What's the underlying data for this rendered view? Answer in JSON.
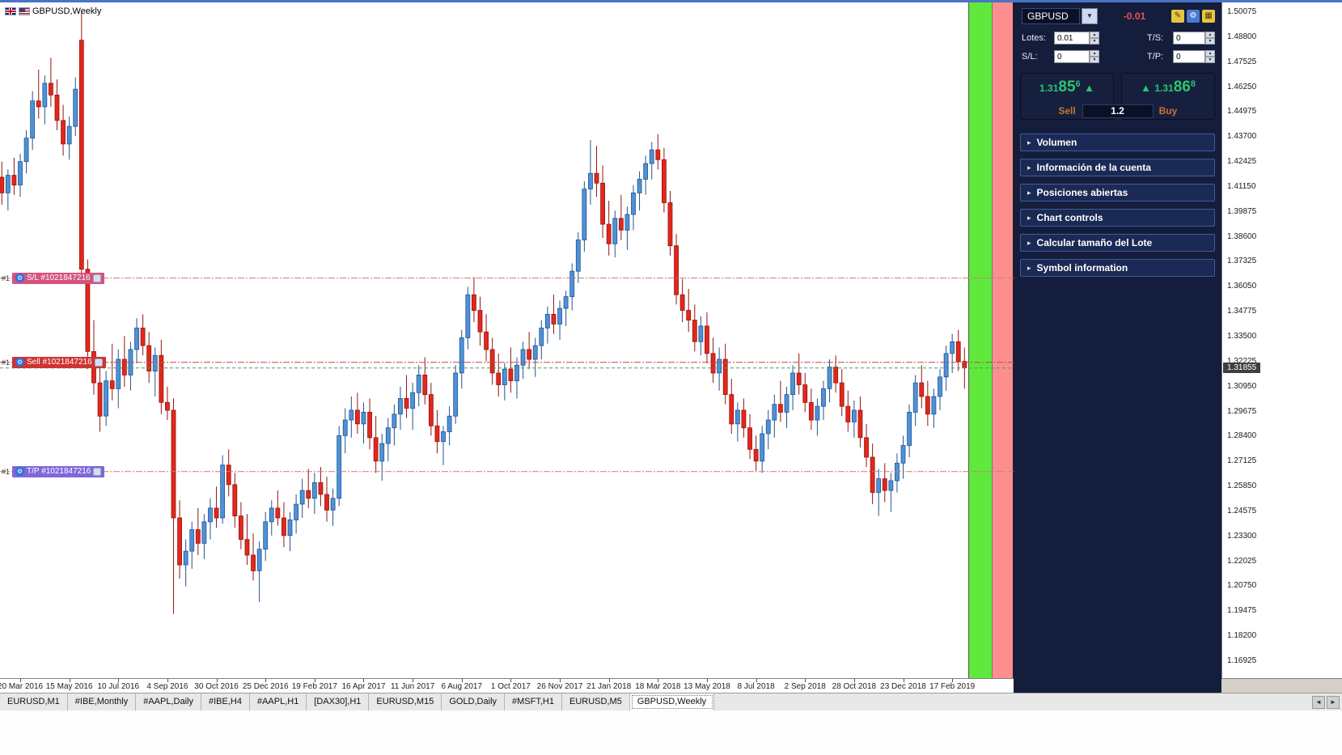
{
  "icons": {
    "dropdown": "▼",
    "up_arrow": "▲",
    "section_arrow": "▸",
    "gear": "⚙",
    "spin_up": "▲",
    "spin_down": "▼",
    "scroll_left": "◄",
    "scroll_right": "►",
    "panel_icon_1": "✎",
    "panel_icon_2": "⚙",
    "panel_icon_3": "▦"
  },
  "chart_data": {
    "type": "candlestick",
    "title": "GBPUSD,Weekly",
    "symbol": "GBPUSD",
    "timeframe": "Weekly",
    "up_color": "#4e92d8",
    "up_border": "#23538f",
    "down_color": "#e3271c",
    "down_border": "#941510",
    "bands": {
      "green_color": "#60e93c",
      "red_color": "#fc8e8e"
    },
    "price_axis": {
      "max": 1.50075,
      "min": 1.16925,
      "tick_step": 0.01275,
      "ticks": [
        "1.50075",
        "1.48800",
        "1.47525",
        "1.46250",
        "1.44975",
        "1.43700",
        "1.42425",
        "1.41150",
        "1.39875",
        "1.38600",
        "1.37325",
        "1.36050",
        "1.34775",
        "1.33500",
        "1.32225",
        "1.30950",
        "1.29675",
        "1.28400",
        "1.27125",
        "1.25850",
        "1.24575",
        "1.23300",
        "1.22025",
        "1.20750",
        "1.19475",
        "1.18200",
        "1.16925"
      ]
    },
    "x_labels": [
      "20 Mar 2016",
      "15 May 2016",
      "10 Jul 2016",
      "4 Sep 2016",
      "30 Oct 2016",
      "25 Dec 2016",
      "19 Feb 2017",
      "16 Apr 2017",
      "11 Jun 2017",
      "6 Aug 2017",
      "1 Oct 2017",
      "26 Nov 2017",
      "21 Jan 2018",
      "18 Mar 2018",
      "13 May 2018",
      "8 Jul 2018",
      "2 Sep 2018",
      "28 Oct 2018",
      "23 Dec 2018",
      "17 Feb 2019"
    ],
    "x_label_start_index": 3,
    "x_label_interval": 8,
    "current_price": {
      "value": 1.31855,
      "display": "1.31855",
      "line_color": "#3d9e63",
      "badge_bg": "#3f3f3f"
    },
    "lines": [
      {
        "id": "sl",
        "price": 1.3645,
        "prefix": "#1",
        "label": "S/L #1021847216",
        "line_color": "#d07878",
        "chip_color": "#d65380",
        "style": "dashdot"
      },
      {
        "id": "sell",
        "price": 1.3215,
        "prefix": "#1",
        "label": "Sell #1021847216",
        "line_color": "#c24848",
        "chip_color": "#cf3333",
        "style": "dashdot"
      },
      {
        "id": "tp",
        "price": 1.2657,
        "prefix": "#1",
        "label": "T/P #1021847216",
        "line_color": "#d07878",
        "chip_color": "#7f68d8",
        "style": "dashdot"
      }
    ],
    "candles": [
      [
        1.416,
        1.424,
        1.402,
        1.408
      ],
      [
        1.408,
        1.42,
        1.399,
        1.417
      ],
      [
        1.417,
        1.426,
        1.407,
        1.412
      ],
      [
        1.412,
        1.428,
        1.406,
        1.424
      ],
      [
        1.424,
        1.44,
        1.418,
        1.436
      ],
      [
        1.436,
        1.46,
        1.43,
        1.455
      ],
      [
        1.455,
        1.471,
        1.446,
        1.452
      ],
      [
        1.452,
        1.468,
        1.443,
        1.464
      ],
      [
        1.464,
        1.477,
        1.452,
        1.458
      ],
      [
        1.458,
        1.466,
        1.44,
        1.445
      ],
      [
        1.445,
        1.453,
        1.427,
        1.433
      ],
      [
        1.433,
        1.447,
        1.425,
        1.442
      ],
      [
        1.442,
        1.467,
        1.437,
        1.461
      ],
      [
        1.486,
        1.501,
        1.362,
        1.369
      ],
      [
        1.369,
        1.374,
        1.318,
        1.327
      ],
      [
        1.327,
        1.343,
        1.305,
        1.311
      ],
      [
        1.311,
        1.32,
        1.286,
        1.294
      ],
      [
        1.294,
        1.317,
        1.289,
        1.312
      ],
      [
        1.312,
        1.331,
        1.302,
        1.308
      ],
      [
        1.308,
        1.328,
        1.298,
        1.323
      ],
      [
        1.323,
        1.335,
        1.309,
        1.315
      ],
      [
        1.315,
        1.332,
        1.307,
        1.328
      ],
      [
        1.328,
        1.344,
        1.321,
        1.339
      ],
      [
        1.339,
        1.346,
        1.325,
        1.33
      ],
      [
        1.33,
        1.337,
        1.311,
        1.317
      ],
      [
        1.317,
        1.329,
        1.304,
        1.325
      ],
      [
        1.325,
        1.333,
        1.295,
        1.301
      ],
      [
        1.301,
        1.309,
        1.292,
        1.297
      ],
      [
        1.297,
        1.303,
        1.193,
        1.242
      ],
      [
        1.242,
        1.251,
        1.211,
        1.218
      ],
      [
        1.218,
        1.231,
        1.207,
        1.225
      ],
      [
        1.225,
        1.24,
        1.216,
        1.236
      ],
      [
        1.236,
        1.247,
        1.223,
        1.229
      ],
      [
        1.229,
        1.244,
        1.221,
        1.24
      ],
      [
        1.24,
        1.252,
        1.231,
        1.247
      ],
      [
        1.247,
        1.258,
        1.237,
        1.242
      ],
      [
        1.242,
        1.274,
        1.239,
        1.269
      ],
      [
        1.269,
        1.277,
        1.253,
        1.259
      ],
      [
        1.259,
        1.265,
        1.237,
        1.243
      ],
      [
        1.243,
        1.25,
        1.226,
        1.231
      ],
      [
        1.231,
        1.244,
        1.218,
        1.223
      ],
      [
        1.223,
        1.234,
        1.21,
        1.215
      ],
      [
        1.215,
        1.23,
        1.199,
        1.226
      ],
      [
        1.226,
        1.245,
        1.22,
        1.24
      ],
      [
        1.24,
        1.251,
        1.233,
        1.247
      ],
      [
        1.247,
        1.256,
        1.238,
        1.242
      ],
      [
        1.242,
        1.25,
        1.227,
        1.233
      ],
      [
        1.233,
        1.245,
        1.225,
        1.241
      ],
      [
        1.241,
        1.254,
        1.234,
        1.249
      ],
      [
        1.249,
        1.262,
        1.242,
        1.256
      ],
      [
        1.256,
        1.267,
        1.247,
        1.252
      ],
      [
        1.252,
        1.265,
        1.244,
        1.26
      ],
      [
        1.26,
        1.268,
        1.248,
        1.254
      ],
      [
        1.254,
        1.263,
        1.24,
        1.246
      ],
      [
        1.246,
        1.257,
        1.238,
        1.252
      ],
      [
        1.252,
        1.289,
        1.248,
        1.284
      ],
      [
        1.284,
        1.298,
        1.275,
        1.292
      ],
      [
        1.292,
        1.304,
        1.283,
        1.297
      ],
      [
        1.297,
        1.306,
        1.285,
        1.29
      ],
      [
        1.29,
        1.301,
        1.28,
        1.296
      ],
      [
        1.296,
        1.303,
        1.277,
        1.283
      ],
      [
        1.283,
        1.294,
        1.265,
        1.271
      ],
      [
        1.271,
        1.285,
        1.261,
        1.28
      ],
      [
        1.28,
        1.293,
        1.271,
        1.288
      ],
      [
        1.288,
        1.3,
        1.279,
        1.295
      ],
      [
        1.295,
        1.309,
        1.287,
        1.303
      ],
      [
        1.303,
        1.315,
        1.293,
        1.298
      ],
      [
        1.298,
        1.311,
        1.287,
        1.306
      ],
      [
        1.306,
        1.32,
        1.299,
        1.315
      ],
      [
        1.315,
        1.324,
        1.3,
        1.305
      ],
      [
        1.305,
        1.311,
        1.284,
        1.289
      ],
      [
        1.289,
        1.297,
        1.275,
        1.281
      ],
      [
        1.281,
        1.289,
        1.269,
        1.286
      ],
      [
        1.286,
        1.299,
        1.279,
        1.294
      ],
      [
        1.294,
        1.32,
        1.29,
        1.316
      ],
      [
        1.316,
        1.338,
        1.308,
        1.334
      ],
      [
        1.334,
        1.36,
        1.328,
        1.356
      ],
      [
        1.356,
        1.365,
        1.342,
        1.348
      ],
      [
        1.348,
        1.355,
        1.33,
        1.337
      ],
      [
        1.337,
        1.346,
        1.322,
        1.328
      ],
      [
        1.328,
        1.334,
        1.31,
        1.316
      ],
      [
        1.316,
        1.326,
        1.304,
        1.31
      ],
      [
        1.31,
        1.321,
        1.302,
        1.318
      ],
      [
        1.318,
        1.329,
        1.306,
        1.312
      ],
      [
        1.312,
        1.324,
        1.303,
        1.32
      ],
      [
        1.32,
        1.332,
        1.313,
        1.328
      ],
      [
        1.328,
        1.337,
        1.318,
        1.323
      ],
      [
        1.323,
        1.334,
        1.314,
        1.33
      ],
      [
        1.33,
        1.343,
        1.323,
        1.339
      ],
      [
        1.339,
        1.35,
        1.331,
        1.346
      ],
      [
        1.346,
        1.356,
        1.336,
        1.341
      ],
      [
        1.341,
        1.353,
        1.333,
        1.349
      ],
      [
        1.349,
        1.358,
        1.34,
        1.355
      ],
      [
        1.355,
        1.372,
        1.348,
        1.368
      ],
      [
        1.368,
        1.388,
        1.362,
        1.384
      ],
      [
        1.384,
        1.414,
        1.378,
        1.41
      ],
      [
        1.41,
        1.435,
        1.402,
        1.418
      ],
      [
        1.418,
        1.432,
        1.406,
        1.413
      ],
      [
        1.413,
        1.422,
        1.385,
        1.392
      ],
      [
        1.392,
        1.404,
        1.376,
        1.382
      ],
      [
        1.382,
        1.399,
        1.375,
        1.395
      ],
      [
        1.395,
        1.407,
        1.384,
        1.389
      ],
      [
        1.389,
        1.401,
        1.379,
        1.397
      ],
      [
        1.397,
        1.412,
        1.389,
        1.408
      ],
      [
        1.408,
        1.419,
        1.399,
        1.415
      ],
      [
        1.415,
        1.427,
        1.407,
        1.423
      ],
      [
        1.423,
        1.434,
        1.415,
        1.43
      ],
      [
        1.43,
        1.438,
        1.42,
        1.425
      ],
      [
        1.425,
        1.431,
        1.398,
        1.403
      ],
      [
        1.403,
        1.409,
        1.376,
        1.381
      ],
      [
        1.381,
        1.387,
        1.351,
        1.356
      ],
      [
        1.356,
        1.364,
        1.342,
        1.348
      ],
      [
        1.348,
        1.359,
        1.337,
        1.343
      ],
      [
        1.343,
        1.351,
        1.327,
        1.332
      ],
      [
        1.332,
        1.345,
        1.325,
        1.34
      ],
      [
        1.34,
        1.347,
        1.321,
        1.326
      ],
      [
        1.326,
        1.334,
        1.311,
        1.316
      ],
      [
        1.316,
        1.329,
        1.307,
        1.323
      ],
      [
        1.323,
        1.331,
        1.3,
        1.305
      ],
      [
        1.305,
        1.313,
        1.285,
        1.29
      ],
      [
        1.29,
        1.301,
        1.281,
        1.297
      ],
      [
        1.297,
        1.303,
        1.283,
        1.288
      ],
      [
        1.288,
        1.295,
        1.272,
        1.277
      ],
      [
        1.277,
        1.284,
        1.266,
        1.271
      ],
      [
        1.271,
        1.289,
        1.265,
        1.285
      ],
      [
        1.285,
        1.297,
        1.277,
        1.292
      ],
      [
        1.292,
        1.305,
        1.283,
        1.3
      ],
      [
        1.3,
        1.312,
        1.291,
        1.296
      ],
      [
        1.296,
        1.309,
        1.288,
        1.305
      ],
      [
        1.305,
        1.32,
        1.297,
        1.316
      ],
      [
        1.316,
        1.326,
        1.305,
        1.31
      ],
      [
        1.31,
        1.316,
        1.296,
        1.301
      ],
      [
        1.301,
        1.308,
        1.287,
        1.292
      ],
      [
        1.292,
        1.303,
        1.284,
        1.299
      ],
      [
        1.299,
        1.312,
        1.292,
        1.308
      ],
      [
        1.308,
        1.323,
        1.301,
        1.319
      ],
      [
        1.319,
        1.325,
        1.306,
        1.311
      ],
      [
        1.311,
        1.318,
        1.294,
        1.299
      ],
      [
        1.299,
        1.307,
        1.286,
        1.291
      ],
      [
        1.291,
        1.302,
        1.283,
        1.297
      ],
      [
        1.297,
        1.304,
        1.278,
        1.283
      ],
      [
        1.283,
        1.29,
        1.268,
        1.273
      ],
      [
        1.273,
        1.28,
        1.249,
        1.255
      ],
      [
        1.255,
        1.267,
        1.243,
        1.262
      ],
      [
        1.262,
        1.27,
        1.25,
        1.256
      ],
      [
        1.256,
        1.265,
        1.245,
        1.261
      ],
      [
        1.261,
        1.275,
        1.255,
        1.27
      ],
      [
        1.27,
        1.284,
        1.262,
        1.279
      ],
      [
        1.279,
        1.3,
        1.273,
        1.296
      ],
      [
        1.296,
        1.315,
        1.289,
        1.311
      ],
      [
        1.311,
        1.32,
        1.298,
        1.304
      ],
      [
        1.304,
        1.312,
        1.289,
        1.295
      ],
      [
        1.295,
        1.308,
        1.288,
        1.304
      ],
      [
        1.304,
        1.318,
        1.297,
        1.314
      ],
      [
        1.314,
        1.33,
        1.307,
        1.326
      ],
      [
        1.326,
        1.336,
        1.316,
        1.332
      ],
      [
        1.332,
        1.338,
        1.317,
        1.322
      ],
      [
        1.322,
        1.329,
        1.308,
        1.3186
      ]
    ]
  },
  "panel": {
    "symbol": "GBPUSD",
    "profit": "-0.01",
    "profit_color": "#e05555",
    "price_color": "#2bc56e",
    "action_color": "#c6792b",
    "lots_label": "Lotes:",
    "lots_value": "0.01",
    "ts_label": "T/S:",
    "ts_value": "0",
    "sl_label": "S/L:",
    "sl_value": "0",
    "tp_label": "T/P:",
    "tp_value": "0",
    "sell_price": "1.31856",
    "buy_price": "1.31868",
    "sell_label": "Sell",
    "buy_label": "Buy",
    "spread": "1.2",
    "sections": [
      "Volumen",
      "Información de la cuenta",
      "Posiciones abiertas",
      "Chart controls",
      "Calcular tamaño del Lote",
      "Symbol information"
    ]
  },
  "tab_bar": {
    "tabs": [
      "EURUSD,M1",
      "#IBE,Monthly",
      "#AAPL,Daily",
      "#IBE,H4",
      "#AAPL,H1",
      "[DAX30],H1",
      "EURUSD,M15",
      "GOLD,Daily",
      "#MSFT,H1",
      "EURUSD,M5",
      "GBPUSD,Weekly"
    ],
    "active": "GBPUSD,Weekly"
  }
}
